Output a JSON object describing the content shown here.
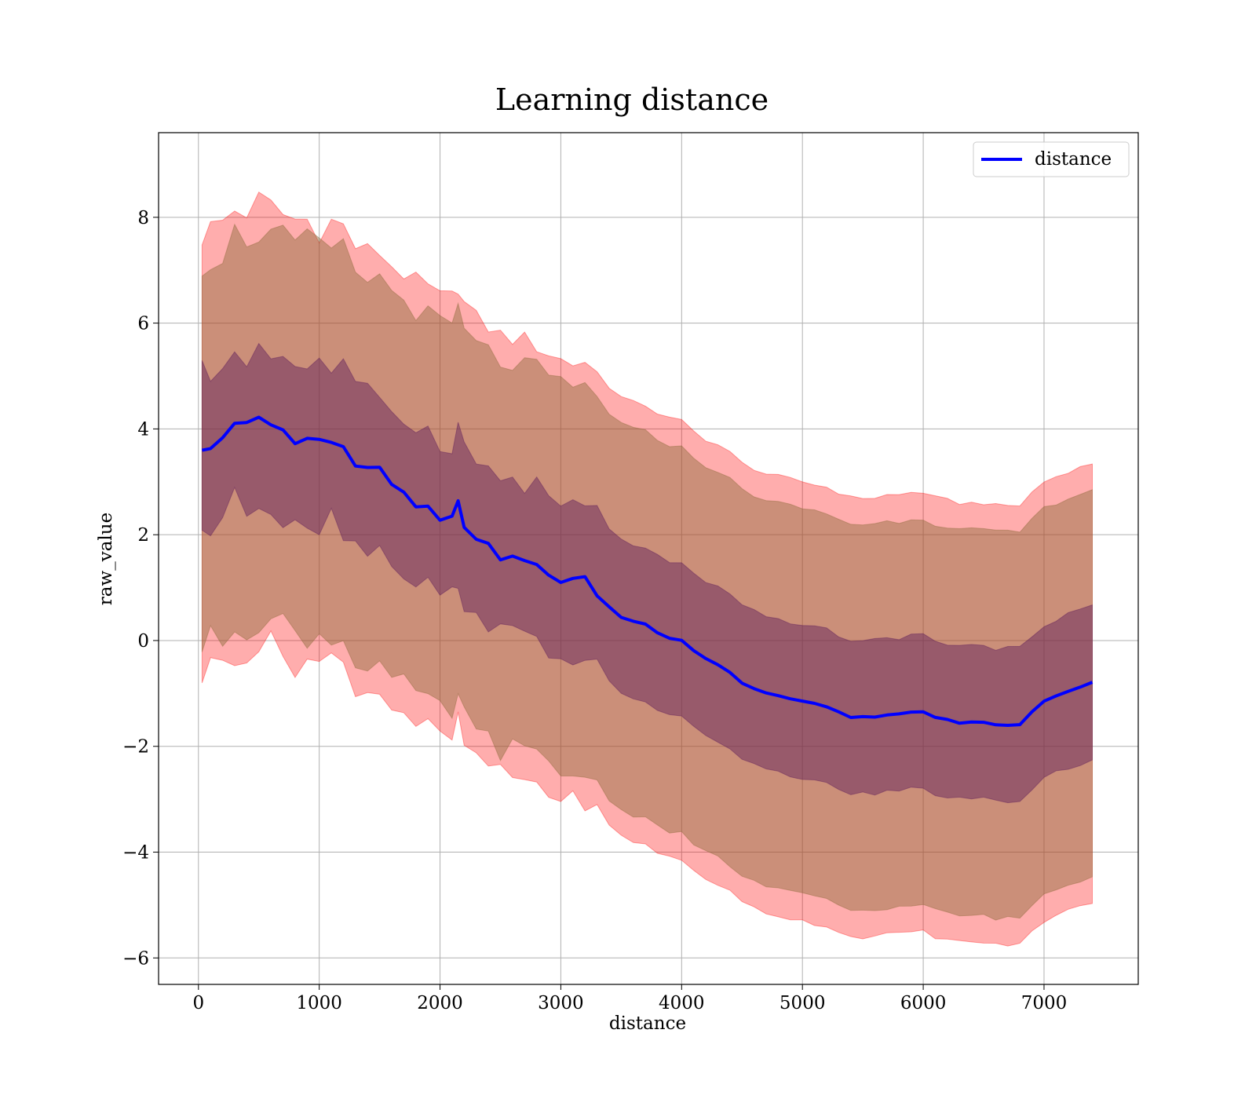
{
  "chart_data": {
    "type": "area",
    "title": "Learning distance",
    "xlabel": "distance",
    "ylabel": "raw_value",
    "xlim": [
      -330,
      7780
    ],
    "ylim": [
      -6.5,
      9.6
    ],
    "xticks": [
      0,
      1000,
      2000,
      3000,
      4000,
      5000,
      6000,
      7000
    ],
    "yticks": [
      -6,
      -4,
      -2,
      0,
      2,
      4,
      6,
      8
    ],
    "xtick_labels": [
      "0",
      "1000",
      "2000",
      "3000",
      "4000",
      "5000",
      "6000",
      "7000"
    ],
    "ytick_labels": [
      "−6",
      "−4",
      "−2",
      "0",
      "2",
      "4",
      "6",
      "8"
    ],
    "grid": true,
    "legend": {
      "placement": "top-right",
      "entries": [
        "distance"
      ]
    },
    "colors": {
      "line": "#0000ff",
      "outer_band": "#ff0000",
      "middle_band": "#8b6a3a",
      "inner_band": "#5a1a5a"
    },
    "x": [
      30,
      100,
      200,
      300,
      400,
      500,
      600,
      700,
      800,
      900,
      1000,
      1100,
      1200,
      1300,
      1400,
      1500,
      1600,
      1700,
      1800,
      1900,
      2000,
      2100,
      2150,
      2200,
      2300,
      2400,
      2500,
      2600,
      2700,
      2800,
      2900,
      3000,
      3100,
      3200,
      3300,
      3400,
      3500,
      3600,
      3700,
      3800,
      3900,
      4000,
      4100,
      4200,
      4300,
      4400,
      4500,
      4600,
      4700,
      4800,
      4900,
      5000,
      5100,
      5200,
      5300,
      5400,
      5500,
      5600,
      5700,
      5800,
      5900,
      6000,
      6100,
      6200,
      6300,
      6400,
      6500,
      6600,
      6700,
      6800,
      6900,
      7000,
      7100,
      7200,
      7300,
      7400
    ],
    "series": [
      {
        "name": "distance",
        "values": [
          3.55,
          3.6,
          3.75,
          4.0,
          4.0,
          4.1,
          4.0,
          3.9,
          3.8,
          3.8,
          3.7,
          3.75,
          3.65,
          3.3,
          3.2,
          3.2,
          2.95,
          2.8,
          2.6,
          2.5,
          2.3,
          2.3,
          2.6,
          2.2,
          1.9,
          1.8,
          1.6,
          1.6,
          1.5,
          1.45,
          1.3,
          1.15,
          1.1,
          1.15,
          0.9,
          0.65,
          0.45,
          0.35,
          0.3,
          0.15,
          0.05,
          0.0,
          -0.2,
          -0.35,
          -0.45,
          -0.6,
          -0.8,
          -0.9,
          -1.0,
          -1.05,
          -1.1,
          -1.15,
          -1.2,
          -1.25,
          -1.35,
          -1.45,
          -1.45,
          -1.45,
          -1.4,
          -1.4,
          -1.35,
          -1.35,
          -1.45,
          -1.5,
          -1.55,
          -1.55,
          -1.55,
          -1.6,
          -1.6,
          -1.6,
          -1.35,
          -1.15,
          -1.05,
          -0.95,
          -0.88,
          -0.8
        ]
      }
    ]
  }
}
